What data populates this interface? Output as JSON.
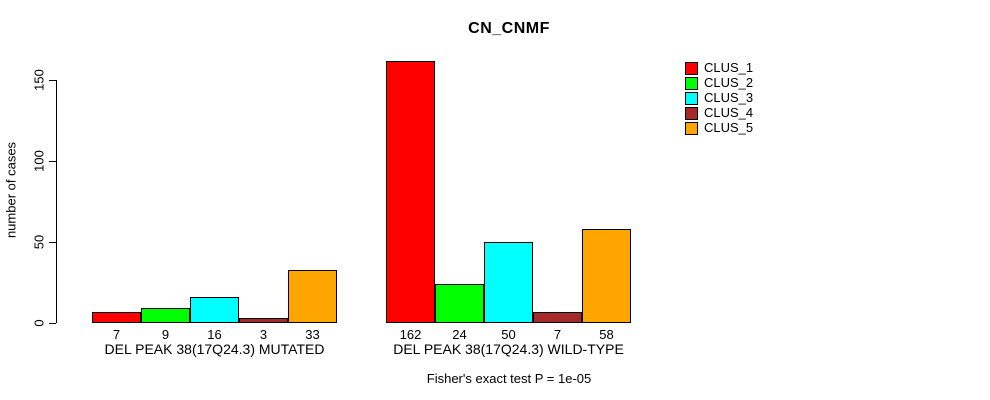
{
  "title": "CN_CNMF",
  "y_axis": {
    "label": "number of cases"
  },
  "footer": "Fisher's exact test P = 1e-05",
  "legend": {
    "entries": [
      {
        "label": "CLUS_1",
        "color": "#ff0000"
      },
      {
        "label": "CLUS_2",
        "color": "#00ff00"
      },
      {
        "label": "CLUS_3",
        "color": "#00ffff"
      },
      {
        "label": "CLUS_4",
        "color": "#a52a2a"
      },
      {
        "label": "CLUS_5",
        "color": "#ffa500"
      }
    ]
  },
  "chart_data": {
    "type": "bar",
    "title": "CN_CNMF",
    "xlabel": "",
    "ylabel": "number of cases",
    "ylim": [
      0,
      170
    ],
    "yticks": [
      0,
      50,
      100,
      150
    ],
    "grid": false,
    "legend_position": "top-right",
    "annotation": "Fisher's exact test P = 1e-05",
    "categories": [
      "DEL PEAK 38(17Q24.3) MUTATED",
      "DEL PEAK 38(17Q24.3) WILD-TYPE"
    ],
    "series": [
      {
        "name": "CLUS_1",
        "color": "#ff0000",
        "values": [
          7,
          162
        ]
      },
      {
        "name": "CLUS_2",
        "color": "#00ff00",
        "values": [
          9,
          24
        ]
      },
      {
        "name": "CLUS_3",
        "color": "#00ffff",
        "values": [
          16,
          50
        ]
      },
      {
        "name": "CLUS_4",
        "color": "#a52a2a",
        "values": [
          3,
          7
        ]
      },
      {
        "name": "CLUS_5",
        "color": "#ffa500",
        "values": [
          33,
          58
        ]
      }
    ],
    "bar_value_labels": [
      [
        7,
        9,
        16,
        3,
        33
      ],
      [
        162,
        24,
        50,
        7,
        58
      ]
    ]
  }
}
